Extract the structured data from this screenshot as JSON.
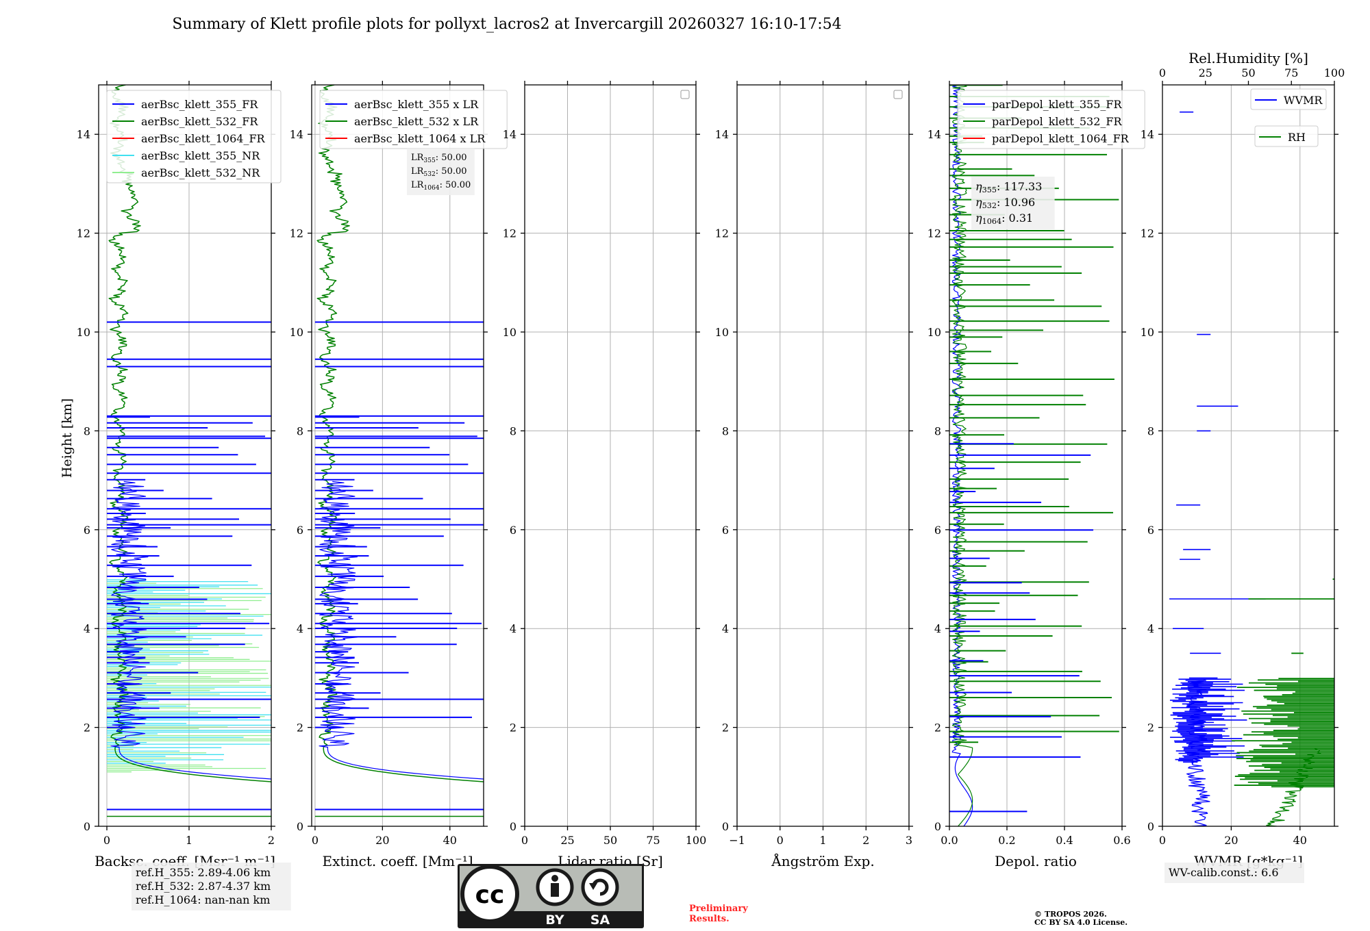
{
  "title": "Summary of Klett profile plots for pollyxt_lacros2 at Invercargill 20260327 16:10-17:54",
  "y_axis_label": "Height [km]",
  "colors": {
    "blue": "#0000ff",
    "green": "#008000",
    "red": "#ff0000",
    "cyan": "#40e0f0",
    "lightgreen": "#90ee90",
    "prelim_red": "#ff2222"
  },
  "chart_data": [
    {
      "type": "line",
      "id": "bsc",
      "xlabel": "Backsc. coeff. [Msr⁻¹ m⁻¹]",
      "xlim": [
        -0.1,
        2
      ],
      "ylim": [
        0,
        15
      ],
      "xticks": [
        0,
        1,
        2
      ],
      "xticklabels": [
        "0",
        "1",
        "2"
      ],
      "yticks": [
        0,
        2,
        4,
        6,
        8,
        10,
        12,
        14
      ],
      "legend": [
        {
          "label": "aerBsc_klett_355_FR",
          "color": "blue"
        },
        {
          "label": "aerBsc_klett_532_FR",
          "color": "green"
        },
        {
          "label": "aerBsc_klett_1064_FR",
          "color": "red"
        },
        {
          "label": "aerBsc_klett_355_NR",
          "color": "cyan"
        },
        {
          "label": "aerBsc_klett_532_NR",
          "color": "lightgreen"
        }
      ],
      "info": [
        "ref.H_355: 2.89-4.06 km",
        "ref.H_532: 2.87-4.37 km",
        "ref.H_1064: nan-nan km"
      ]
    },
    {
      "type": "line",
      "id": "ext",
      "xlabel": "Extinct. coeff. [Mm⁻¹]",
      "xlim": [
        -1,
        50
      ],
      "ylim": [
        0,
        15
      ],
      "xticks": [
        0,
        20,
        40
      ],
      "xticklabels": [
        "0",
        "20",
        "40"
      ],
      "yticks": [
        0,
        2,
        4,
        6,
        8,
        10,
        12,
        14
      ],
      "legend": [
        {
          "label": "aerBsc_klett_355 x LR",
          "color": "blue"
        },
        {
          "label": "aerBsc_klett_532 x LR",
          "color": "green"
        },
        {
          "label": "aerBsc_klett_1064 x LR",
          "color": "red"
        }
      ],
      "lr_info": [
        "LR355: 50.00",
        "LR532: 50.00",
        "LR1064: 50.00"
      ]
    },
    {
      "type": "line",
      "id": "lr",
      "xlabel": "Lidar ratio [Sr]",
      "xlim": [
        0,
        100
      ],
      "ylim": [
        0,
        15
      ],
      "xticks": [
        0,
        25,
        50,
        75,
        100
      ],
      "xticklabels": [
        "0",
        "25",
        "50",
        "75",
        "100"
      ],
      "yticks": [
        0,
        2,
        4,
        6,
        8,
        10,
        12,
        14
      ],
      "legend": []
    },
    {
      "type": "line",
      "id": "ang",
      "xlabel": "Ångström Exp.",
      "xlim": [
        -1,
        3
      ],
      "ylim": [
        0,
        15
      ],
      "xticks": [
        -1,
        0,
        1,
        2,
        3
      ],
      "xticklabels": [
        "−1",
        "0",
        "1",
        "2",
        "3"
      ],
      "yticks": [
        0,
        2,
        4,
        6,
        8,
        10,
        12,
        14
      ],
      "legend": []
    },
    {
      "type": "line",
      "id": "depol",
      "xlabel": "Depol. ratio",
      "xlim": [
        0,
        0.6
      ],
      "ylim": [
        0,
        15
      ],
      "xticks": [
        0,
        0.2,
        0.4,
        0.6
      ],
      "xticklabels": [
        "0.0",
        "0.2",
        "0.4",
        "0.6"
      ],
      "yticks": [
        0,
        2,
        4,
        6,
        8,
        10,
        12,
        14
      ],
      "legend": [
        {
          "label": "parDepol_klett_355_FR",
          "color": "blue"
        },
        {
          "label": "parDepol_klett_532_FR",
          "color": "green"
        },
        {
          "label": "parDepol_klett_1064_FR",
          "color": "red"
        }
      ],
      "eta_info": [
        "η355: 117.33",
        "η532: 10.96",
        "η1064: 0.31"
      ]
    },
    {
      "type": "line",
      "id": "wv",
      "xlabel": "WVMR [g*kg⁻¹]",
      "xlim": [
        0,
        50
      ],
      "ylim": [
        0,
        15
      ],
      "xticks": [
        0,
        20,
        40
      ],
      "xticklabels": [
        "0",
        "20",
        "40"
      ],
      "yticks": [
        0,
        2,
        4,
        6,
        8,
        10,
        12,
        14
      ],
      "top_label": "Rel.Humidity [%]",
      "top_xlim": [
        0,
        100
      ],
      "top_xticks": [
        0,
        25,
        50,
        75,
        100
      ],
      "top_xticklabels": [
        "0",
        "25",
        "50",
        "75",
        "100"
      ],
      "legend": [
        {
          "label": "WVMR",
          "color": "blue"
        },
        {
          "label": "RH",
          "color": "green"
        }
      ],
      "info": [
        "WV-calib.const.: 6.6"
      ]
    }
  ],
  "license": {
    "badge_left": "BY",
    "badge_right": "SA",
    "preliminary": [
      "Preliminary",
      "Results."
    ],
    "copyright": [
      "© TROPOS 2026.",
      "CC BY SA 4.0 License."
    ]
  }
}
